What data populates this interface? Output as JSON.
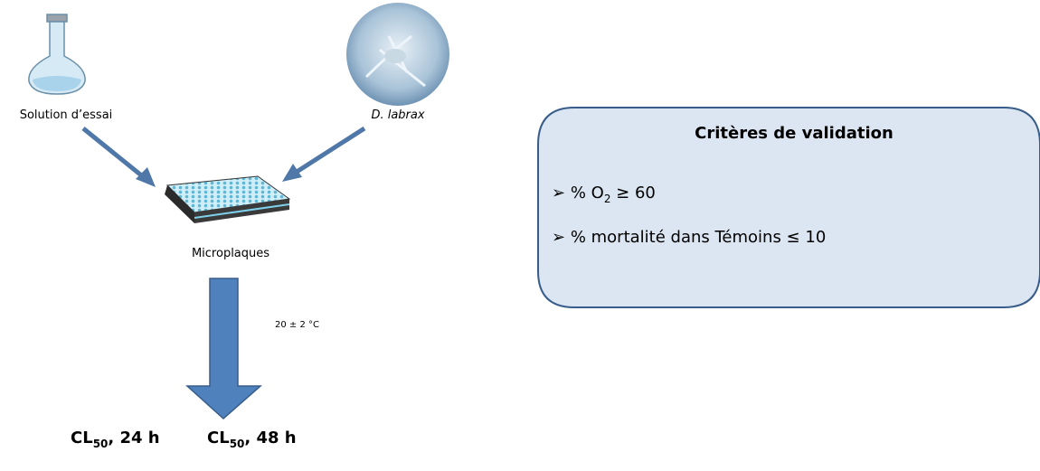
{
  "nodes": [
    {
      "label": "Solution d’essai"
    },
    {
      "label": "D. labrax"
    },
    {
      "label": "Microplaques"
    }
  ],
  "condition": "20 ± 2 °C",
  "outputs": [
    {
      "base": "CL",
      "sub": "50",
      "rest": ", 24 h"
    },
    {
      "base": "CL",
      "sub": "50",
      "rest": ", 48 h"
    }
  ],
  "criteria": {
    "title": "Critères de validation",
    "items": [
      {
        "text": "% O",
        "sub": "2",
        "rest": " ≥ 60"
      },
      {
        "text": "% mortalité dans Témoins ≤ 10"
      }
    ]
  }
}
